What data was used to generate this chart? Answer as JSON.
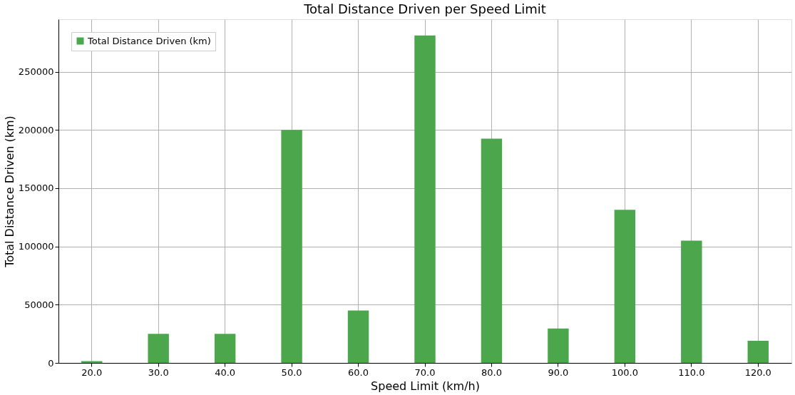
{
  "chart_data": {
    "type": "bar",
    "title": "Total Distance Driven per Speed Limit",
    "xlabel": "Speed Limit (km/h)",
    "ylabel": "Total Distance Driven (km)",
    "categories": [
      "20.0",
      "30.0",
      "40.0",
      "50.0",
      "60.0",
      "70.0",
      "80.0",
      "90.0",
      "100.0",
      "110.0",
      "120.0"
    ],
    "series": [
      {
        "name": "Total Distance Driven (km)",
        "color": "#4ca64c",
        "values": [
          1500,
          25000,
          25000,
          200000,
          45000,
          281000,
          192500,
          29500,
          131500,
          105000,
          19000
        ]
      }
    ],
    "ylim": [
      0,
      295000
    ],
    "yticks": [
      0,
      50000,
      100000,
      150000,
      200000,
      250000
    ],
    "grid": true,
    "legend": "top left"
  }
}
